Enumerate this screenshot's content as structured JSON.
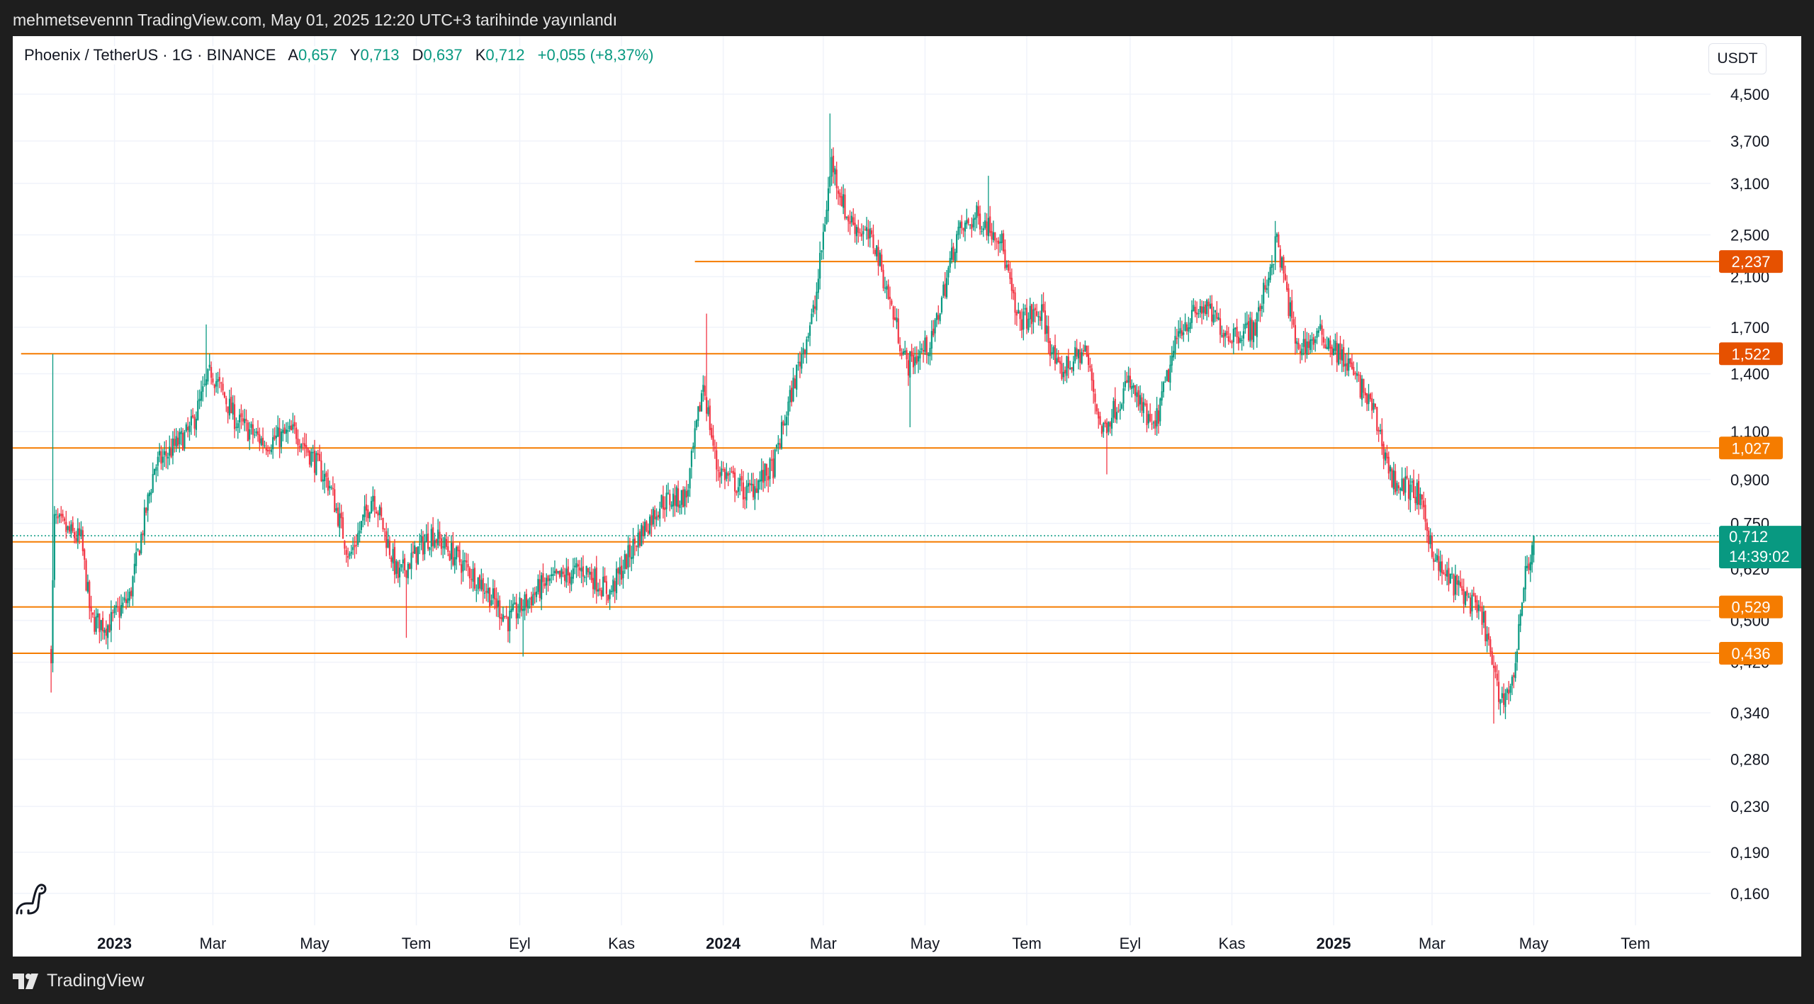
{
  "header": {
    "publish_text": "mehmetsevennn TradingView.com, May 01, 2025 12:20 UTC+3 tarihinde yayınlandı"
  },
  "legend": {
    "symbol": "Phoenix / TetherUS · 1G · BINANCE",
    "open_label": "A",
    "open_value": "0,657",
    "high_label": "Y",
    "high_value": "0,713",
    "low_label": "D",
    "low_value": "0,637",
    "close_label": "K",
    "close_value": "0,712",
    "change": "+0,055 (+8,37%)"
  },
  "currency_button": "USDT",
  "footer": {
    "brand": "TradingView"
  },
  "colors": {
    "up": "#089981",
    "down": "#f23645",
    "level_line": "#f57c00",
    "level_badge": "#f57c00",
    "level_badge_dark": "#e65100",
    "grid": "#f0f3fa"
  },
  "icons": [
    "tradingview-logo-icon",
    "dino-icon"
  ],
  "chart_data": {
    "type": "candlestick",
    "title": "",
    "scale": "log",
    "ylim": [
      0.14,
      4.8
    ],
    "xlim": [
      "2022-11-01",
      "2025-08-15"
    ],
    "grid": true,
    "y_ticks": [
      "4,500",
      "3,700",
      "3,100",
      "2,500",
      "2,100",
      "1,700",
      "1,400",
      "1,100",
      "0,900",
      "0,750",
      "0,620",
      "0,500",
      "0,420",
      "0,340",
      "0,280",
      "0,230",
      "0,190",
      "0,160"
    ],
    "x_ticks": [
      {
        "label": "2023",
        "date": "2023-01-01",
        "bold": true
      },
      {
        "label": "Mar",
        "date": "2023-03-01"
      },
      {
        "label": "May",
        "date": "2023-05-01"
      },
      {
        "label": "Tem",
        "date": "2023-07-01"
      },
      {
        "label": "Eyl",
        "date": "2023-09-01"
      },
      {
        "label": "Kas",
        "date": "2023-11-01"
      },
      {
        "label": "2024",
        "date": "2024-01-01",
        "bold": true
      },
      {
        "label": "Mar",
        "date": "2024-03-01"
      },
      {
        "label": "May",
        "date": "2024-05-01"
      },
      {
        "label": "Tem",
        "date": "2024-07-01"
      },
      {
        "label": "Eyl",
        "date": "2024-09-01"
      },
      {
        "label": "Kas",
        "date": "2024-11-01"
      },
      {
        "label": "2025",
        "date": "2025-01-01",
        "bold": true
      },
      {
        "label": "Mar",
        "date": "2025-03-01"
      },
      {
        "label": "May",
        "date": "2025-05-01"
      },
      {
        "label": "Tem",
        "date": "2025-07-01"
      }
    ],
    "levels": [
      {
        "value": 2.237,
        "label": "2,237",
        "from": "2023-12-15",
        "dark": true
      },
      {
        "value": 1.522,
        "label": "1,522",
        "from": "2022-11-06",
        "dark": true
      },
      {
        "value": 1.027,
        "label": "1,027",
        "from": "2022-11-01"
      },
      {
        "value": 0.694,
        "label": "0,694",
        "from": "2022-11-01"
      },
      {
        "value": 0.529,
        "label": "0,529",
        "from": "2022-11-01"
      },
      {
        "value": 0.436,
        "label": "0,436",
        "from": "2022-11-01"
      }
    ],
    "last_price": {
      "value": 0.712,
      "label": "0,712",
      "countdown": "14:39:02"
    },
    "price_path": [
      {
        "date": "2022-11-24",
        "price": 0.44
      },
      {
        "date": "2022-11-26",
        "price": 0.76
      },
      {
        "date": "2022-12-05",
        "price": 0.72
      },
      {
        "date": "2022-12-12",
        "price": 0.7
      },
      {
        "date": "2022-12-18",
        "price": 0.5
      },
      {
        "date": "2022-12-28",
        "price": 0.49
      },
      {
        "date": "2023-01-10",
        "price": 0.55
      },
      {
        "date": "2023-01-25",
        "price": 0.95
      },
      {
        "date": "2023-02-15",
        "price": 1.1
      },
      {
        "date": "2023-02-28",
        "price": 1.42
      },
      {
        "date": "2023-03-15",
        "price": 1.15
      },
      {
        "date": "2023-04-01",
        "price": 1.05
      },
      {
        "date": "2023-04-20",
        "price": 1.1
      },
      {
        "date": "2023-05-10",
        "price": 0.88
      },
      {
        "date": "2023-05-22",
        "price": 0.65
      },
      {
        "date": "2023-06-05",
        "price": 0.85
      },
      {
        "date": "2023-06-20",
        "price": 0.6
      },
      {
        "date": "2023-07-10",
        "price": 0.72
      },
      {
        "date": "2023-07-25",
        "price": 0.65
      },
      {
        "date": "2023-08-10",
        "price": 0.58
      },
      {
        "date": "2023-08-25",
        "price": 0.5
      },
      {
        "date": "2023-09-15",
        "price": 0.58
      },
      {
        "date": "2023-10-10",
        "price": 0.62
      },
      {
        "date": "2023-10-25",
        "price": 0.56
      },
      {
        "date": "2023-11-10",
        "price": 0.7
      },
      {
        "date": "2023-11-25",
        "price": 0.82
      },
      {
        "date": "2023-12-10",
        "price": 0.84
      },
      {
        "date": "2023-12-20",
        "price": 1.35
      },
      {
        "date": "2023-12-28",
        "price": 0.95
      },
      {
        "date": "2024-01-15",
        "price": 0.85
      },
      {
        "date": "2024-01-31",
        "price": 0.95
      },
      {
        "date": "2024-02-15",
        "price": 1.45
      },
      {
        "date": "2024-02-25",
        "price": 1.85
      },
      {
        "date": "2024-03-06",
        "price": 3.4
      },
      {
        "date": "2024-03-15",
        "price": 2.7
      },
      {
        "date": "2024-04-01",
        "price": 2.4
      },
      {
        "date": "2024-04-20",
        "price": 1.45
      },
      {
        "date": "2024-05-05",
        "price": 1.6
      },
      {
        "date": "2024-05-20",
        "price": 2.5
      },
      {
        "date": "2024-06-01",
        "price": 2.7
      },
      {
        "date": "2024-06-15",
        "price": 2.5
      },
      {
        "date": "2024-06-25",
        "price": 1.75
      },
      {
        "date": "2024-07-10",
        "price": 1.8
      },
      {
        "date": "2024-07-20",
        "price": 1.4
      },
      {
        "date": "2024-08-05",
        "price": 1.55
      },
      {
        "date": "2024-08-15",
        "price": 1.1
      },
      {
        "date": "2024-08-31",
        "price": 1.35
      },
      {
        "date": "2024-09-15",
        "price": 1.1
      },
      {
        "date": "2024-10-01",
        "price": 1.7
      },
      {
        "date": "2024-10-15",
        "price": 1.85
      },
      {
        "date": "2024-10-30",
        "price": 1.65
      },
      {
        "date": "2024-11-15",
        "price": 1.7
      },
      {
        "date": "2024-11-28",
        "price": 2.45
      },
      {
        "date": "2024-12-10",
        "price": 1.55
      },
      {
        "date": "2024-12-25",
        "price": 1.65
      },
      {
        "date": "2025-01-10",
        "price": 1.45
      },
      {
        "date": "2025-01-25",
        "price": 1.2
      },
      {
        "date": "2025-02-05",
        "price": 0.9
      },
      {
        "date": "2025-02-20",
        "price": 0.85
      },
      {
        "date": "2025-03-05",
        "price": 0.62
      },
      {
        "date": "2025-03-20",
        "price": 0.56
      },
      {
        "date": "2025-04-01",
        "price": 0.5
      },
      {
        "date": "2025-04-10",
        "price": 0.36
      },
      {
        "date": "2025-04-18",
        "price": 0.38
      },
      {
        "date": "2025-04-25",
        "price": 0.58
      },
      {
        "date": "2025-05-01",
        "price": 0.712
      }
    ],
    "extreme_wicks": [
      {
        "date": "2022-11-24",
        "low": 0.37
      },
      {
        "date": "2022-11-25",
        "high": 1.52
      },
      {
        "date": "2023-02-25",
        "high": 1.72
      },
      {
        "date": "2023-06-25",
        "low": 0.465
      },
      {
        "date": "2023-09-03",
        "low": 0.43
      },
      {
        "date": "2023-12-22",
        "high": 1.8
      },
      {
        "date": "2024-03-05",
        "high": 4.15
      },
      {
        "date": "2024-04-22",
        "low": 1.12
      },
      {
        "date": "2024-06-08",
        "high": 3.2
      },
      {
        "date": "2024-08-18",
        "low": 0.92
      },
      {
        "date": "2024-11-27",
        "high": 2.65
      },
      {
        "date": "2025-04-07",
        "low": 0.325
      }
    ]
  }
}
